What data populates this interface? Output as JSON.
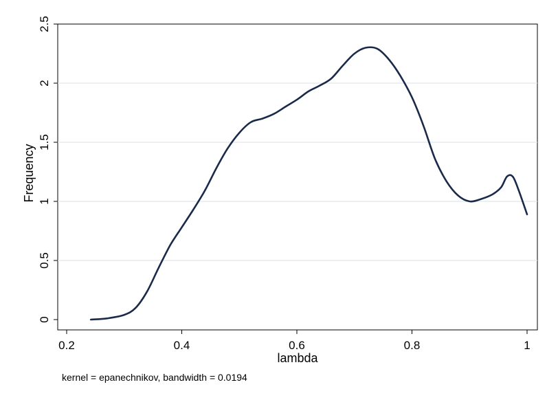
{
  "chart_data": {
    "type": "line",
    "title": "",
    "xlabel": "lambda",
    "ylabel": "Frequency",
    "note": "kernel = epanechnikov, bandwidth = 0.0194",
    "xlim": [
      0.2,
      1.0
    ],
    "ylim": [
      0,
      2.5
    ],
    "x_ticks": [
      "0.2",
      "0.4",
      "0.6",
      "0.8",
      "1"
    ],
    "y_ticks": [
      "0",
      "0.5",
      "1",
      "1.5",
      "2",
      "2.5"
    ],
    "grid": true,
    "line_color": "#1a2a4a",
    "series": [
      {
        "name": "",
        "x": [
          0.242,
          0.27,
          0.3,
          0.32,
          0.34,
          0.36,
          0.38,
          0.4,
          0.42,
          0.44,
          0.46,
          0.48,
          0.5,
          0.52,
          0.54,
          0.56,
          0.58,
          0.6,
          0.62,
          0.64,
          0.66,
          0.68,
          0.7,
          0.72,
          0.74,
          0.76,
          0.78,
          0.8,
          0.82,
          0.84,
          0.86,
          0.88,
          0.9,
          0.92,
          0.94,
          0.955,
          0.965,
          0.975,
          0.985,
          1.0
        ],
        "y": [
          0.0,
          0.01,
          0.04,
          0.1,
          0.24,
          0.44,
          0.63,
          0.78,
          0.93,
          1.09,
          1.28,
          1.45,
          1.58,
          1.67,
          1.7,
          1.74,
          1.8,
          1.86,
          1.93,
          1.98,
          2.04,
          2.15,
          2.25,
          2.3,
          2.29,
          2.2,
          2.06,
          1.88,
          1.64,
          1.36,
          1.17,
          1.05,
          1.0,
          1.02,
          1.06,
          1.12,
          1.21,
          1.21,
          1.1,
          0.89
        ]
      }
    ]
  }
}
